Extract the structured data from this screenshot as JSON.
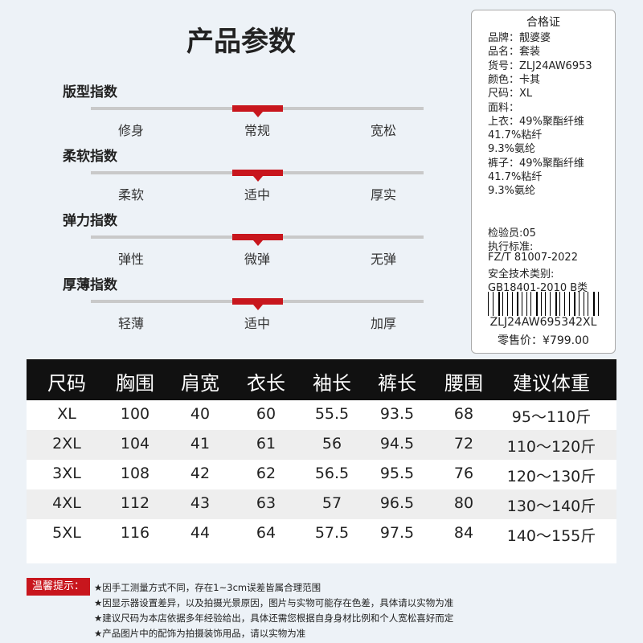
{
  "title": "产品参数",
  "indices": [
    {
      "label": "版型指数",
      "options": [
        "修身",
        "常规",
        "宽松"
      ]
    },
    {
      "label": "柔软指数",
      "options": [
        "柔软",
        "适中",
        "厚实"
      ]
    },
    {
      "label": "弹力指数",
      "options": [
        "弹性",
        "微弹",
        "无弹"
      ]
    },
    {
      "label": "厚薄指数",
      "options": [
        "轻薄",
        "适中",
        "加厚"
      ]
    }
  ],
  "certificate": {
    "title": "合格证",
    "lines": [
      "品牌：靓婆婆",
      "品名：套装",
      "货号：ZLJ24AW6953",
      "颜色：卡其",
      "尺码：XL",
      "面料：",
      "上衣：49%聚酯纤维",
      "41.7%粘纤",
      "9.3%氨纶",
      "裤子：49%聚酯纤维",
      "41.7%粘纤",
      "9.3%氨纶"
    ],
    "lines2": [
      "检验员:05",
      "执行标准:",
      "FZ/T 81007-2022",
      "安全技术类别:",
      "GB18401-2010 B类"
    ],
    "code": "ZLJ24AW695342XL",
    "price": "零售价：¥799.00"
  },
  "table": {
    "header": [
      "尺码",
      "胸围",
      "肩宽",
      "衣长",
      "袖长",
      "裤长",
      "腰围",
      "建议体重"
    ],
    "rows": [
      [
        "XL",
        "100",
        "40",
        "60",
        "55.5",
        "93.5",
        "68",
        "95～110斤"
      ],
      [
        "2XL",
        "104",
        "41",
        "61",
        "56",
        "94.5",
        "72",
        "110～120斤"
      ],
      [
        "3XL",
        "108",
        "42",
        "62",
        "56.5",
        "95.5",
        "76",
        "120～130斤"
      ],
      [
        "4XL",
        "112",
        "43",
        "63",
        "57",
        "96.5",
        "80",
        "130～140斤"
      ],
      [
        "5XL",
        "116",
        "44",
        "64",
        "57.5",
        "97.5",
        "84",
        "140～155斤"
      ]
    ]
  },
  "notes": {
    "label": "温馨提示：",
    "items": [
      "★因手工测量方式不同，存在1~3cm误差皆属合理范围",
      "★因显示器设置差异，以及拍摄光景原因，图片与实物可能存在色差，具体请以实物为准",
      "★建议尺码为本店依据多年经验给出，具体还需您根据自身身材比例和个人宽松喜好而定",
      "★产品图片中的配饰为拍摄装饰用品，请以实物为准"
    ]
  }
}
